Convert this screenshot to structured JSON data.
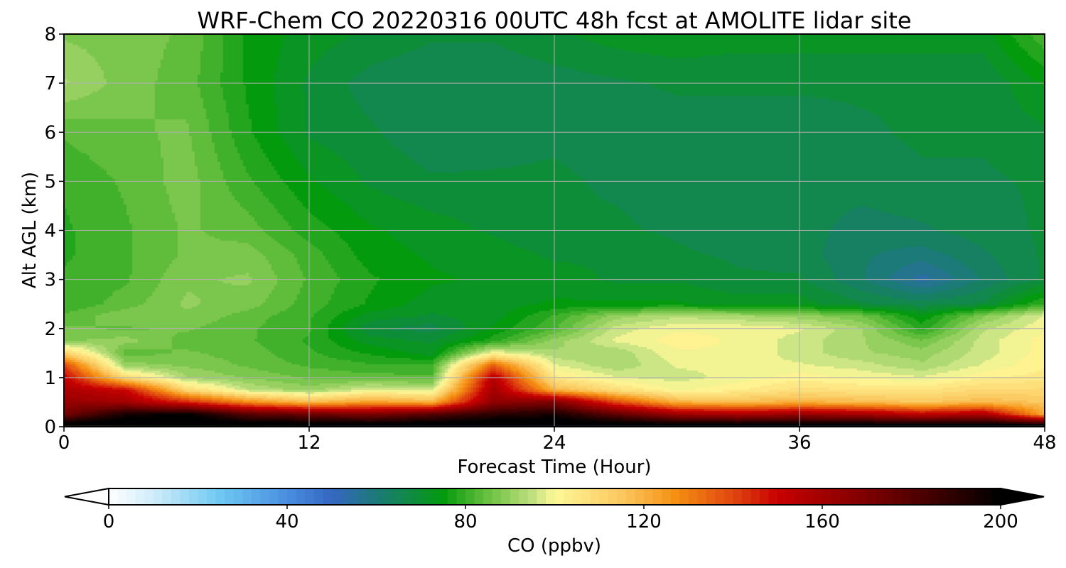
{
  "chart_data": {
    "type": "heatmap",
    "title": "WRF-Chem CO  20220316 00UTC 48h fcst at AMOLITE lidar site",
    "xlabel": "Forecast Time (Hour)",
    "ylabel": "Alt AGL (km)",
    "xlim": [
      0,
      48
    ],
    "ylim": [
      0,
      8
    ],
    "x_ticks": [
      0,
      12,
      24,
      36,
      48
    ],
    "y_ticks": [
      0,
      1,
      2,
      3,
      4,
      5,
      6,
      7,
      8
    ],
    "grid": true,
    "x": [
      0,
      3,
      6,
      9,
      12,
      15,
      18,
      21,
      24,
      27,
      30,
      33,
      36,
      39,
      42,
      45,
      48
    ],
    "y": [
      0,
      0.25,
      0.5,
      0.75,
      1,
      1.25,
      1.5,
      1.75,
      2,
      2.25,
      2.5,
      3,
      3.5,
      4,
      5,
      6,
      7,
      8
    ],
    "values": [
      [
        210,
        210,
        210,
        210,
        210,
        210,
        210,
        210,
        210,
        210,
        210,
        210,
        210,
        210,
        210,
        210,
        210
      ],
      [
        172,
        195,
        200,
        180,
        175,
        170,
        180,
        190,
        195,
        178,
        162,
        158,
        163,
        160,
        152,
        158,
        122
      ],
      [
        163,
        160,
        145,
        128,
        118,
        124,
        120,
        165,
        170,
        140,
        120,
        118,
        120,
        118,
        115,
        118,
        115
      ],
      [
        158,
        150,
        110,
        95,
        90,
        98,
        96,
        160,
        120,
        108,
        100,
        103,
        108,
        106,
        106,
        110,
        110
      ],
      [
        152,
        110,
        92,
        88,
        85,
        84,
        83,
        155,
        105,
        98,
        96,
        99,
        102,
        100,
        98,
        103,
        105
      ],
      [
        140,
        90,
        88,
        85,
        82,
        80,
        80,
        135,
        98,
        92,
        98,
        98,
        98,
        96,
        92,
        98,
        103
      ],
      [
        112,
        84,
        86,
        84,
        80,
        76,
        72,
        100,
        92,
        92,
        100,
        100,
        96,
        92,
        90,
        96,
        102
      ],
      [
        88,
        90,
        84,
        83,
        79,
        72,
        70,
        78,
        90,
        98,
        102,
        100,
        96,
        92,
        86,
        96,
        102
      ],
      [
        86,
        85,
        86,
        83,
        80,
        68,
        66,
        74,
        82,
        96,
        100,
        100,
        98,
        92,
        78,
        94,
        100
      ],
      [
        83,
        88,
        88,
        84,
        80,
        72,
        70,
        72,
        80,
        90,
        94,
        92,
        90,
        86,
        74,
        88,
        98
      ],
      [
        80,
        84,
        89,
        87,
        81,
        76,
        72,
        72,
        74,
        74,
        74,
        72,
        72,
        68,
        66,
        68,
        80
      ],
      [
        80,
        82,
        88,
        89,
        82,
        77,
        74,
        73,
        72,
        70,
        70,
        68,
        68,
        62,
        54,
        62,
        68
      ],
      [
        79,
        82,
        86,
        87,
        81,
        75,
        73,
        72,
        70,
        70,
        68,
        67,
        66,
        62,
        60,
        64,
        68
      ],
      [
        79,
        82,
        86,
        84,
        78,
        74,
        72,
        70,
        68,
        68,
        67,
        66,
        66,
        63,
        64,
        66,
        68
      ],
      [
        80,
        83,
        87,
        80,
        74,
        70,
        68,
        68,
        68,
        67,
        66,
        66,
        66,
        66,
        67,
        67,
        68
      ],
      [
        83,
        85,
        86,
        77,
        70,
        68,
        65,
        66,
        67,
        66,
        66,
        66,
        66,
        67,
        68,
        68,
        70
      ],
      [
        92,
        87,
        84,
        76,
        70,
        66,
        65,
        65,
        66,
        67,
        68,
        68,
        68,
        68,
        68,
        68,
        74
      ],
      [
        88,
        87,
        85,
        76,
        72,
        70,
        68,
        68,
        70,
        72,
        73,
        72,
        72,
        72,
        72,
        72,
        82
      ]
    ],
    "colorbar": {
      "label": "CO  (ppbv)",
      "min": 0,
      "max": 200,
      "ticks": [
        0,
        40,
        80,
        120,
        160,
        200
      ],
      "extend": "both",
      "orientation": "horizontal",
      "stops": [
        [
          0,
          "#ffffff"
        ],
        [
          10,
          "#d0ecfa"
        ],
        [
          25,
          "#6ec8f2"
        ],
        [
          40,
          "#4a8ee0"
        ],
        [
          50,
          "#3566c2"
        ],
        [
          60,
          "#1c7a78"
        ],
        [
          75,
          "#049a0e"
        ],
        [
          85,
          "#6ac040"
        ],
        [
          95,
          "#c0e080"
        ],
        [
          100,
          "#fef898"
        ],
        [
          115,
          "#fbc860"
        ],
        [
          127,
          "#f59012"
        ],
        [
          140,
          "#e04610"
        ],
        [
          150,
          "#c80000"
        ],
        [
          175,
          "#6a0000"
        ],
        [
          200,
          "#000000"
        ]
      ]
    }
  }
}
